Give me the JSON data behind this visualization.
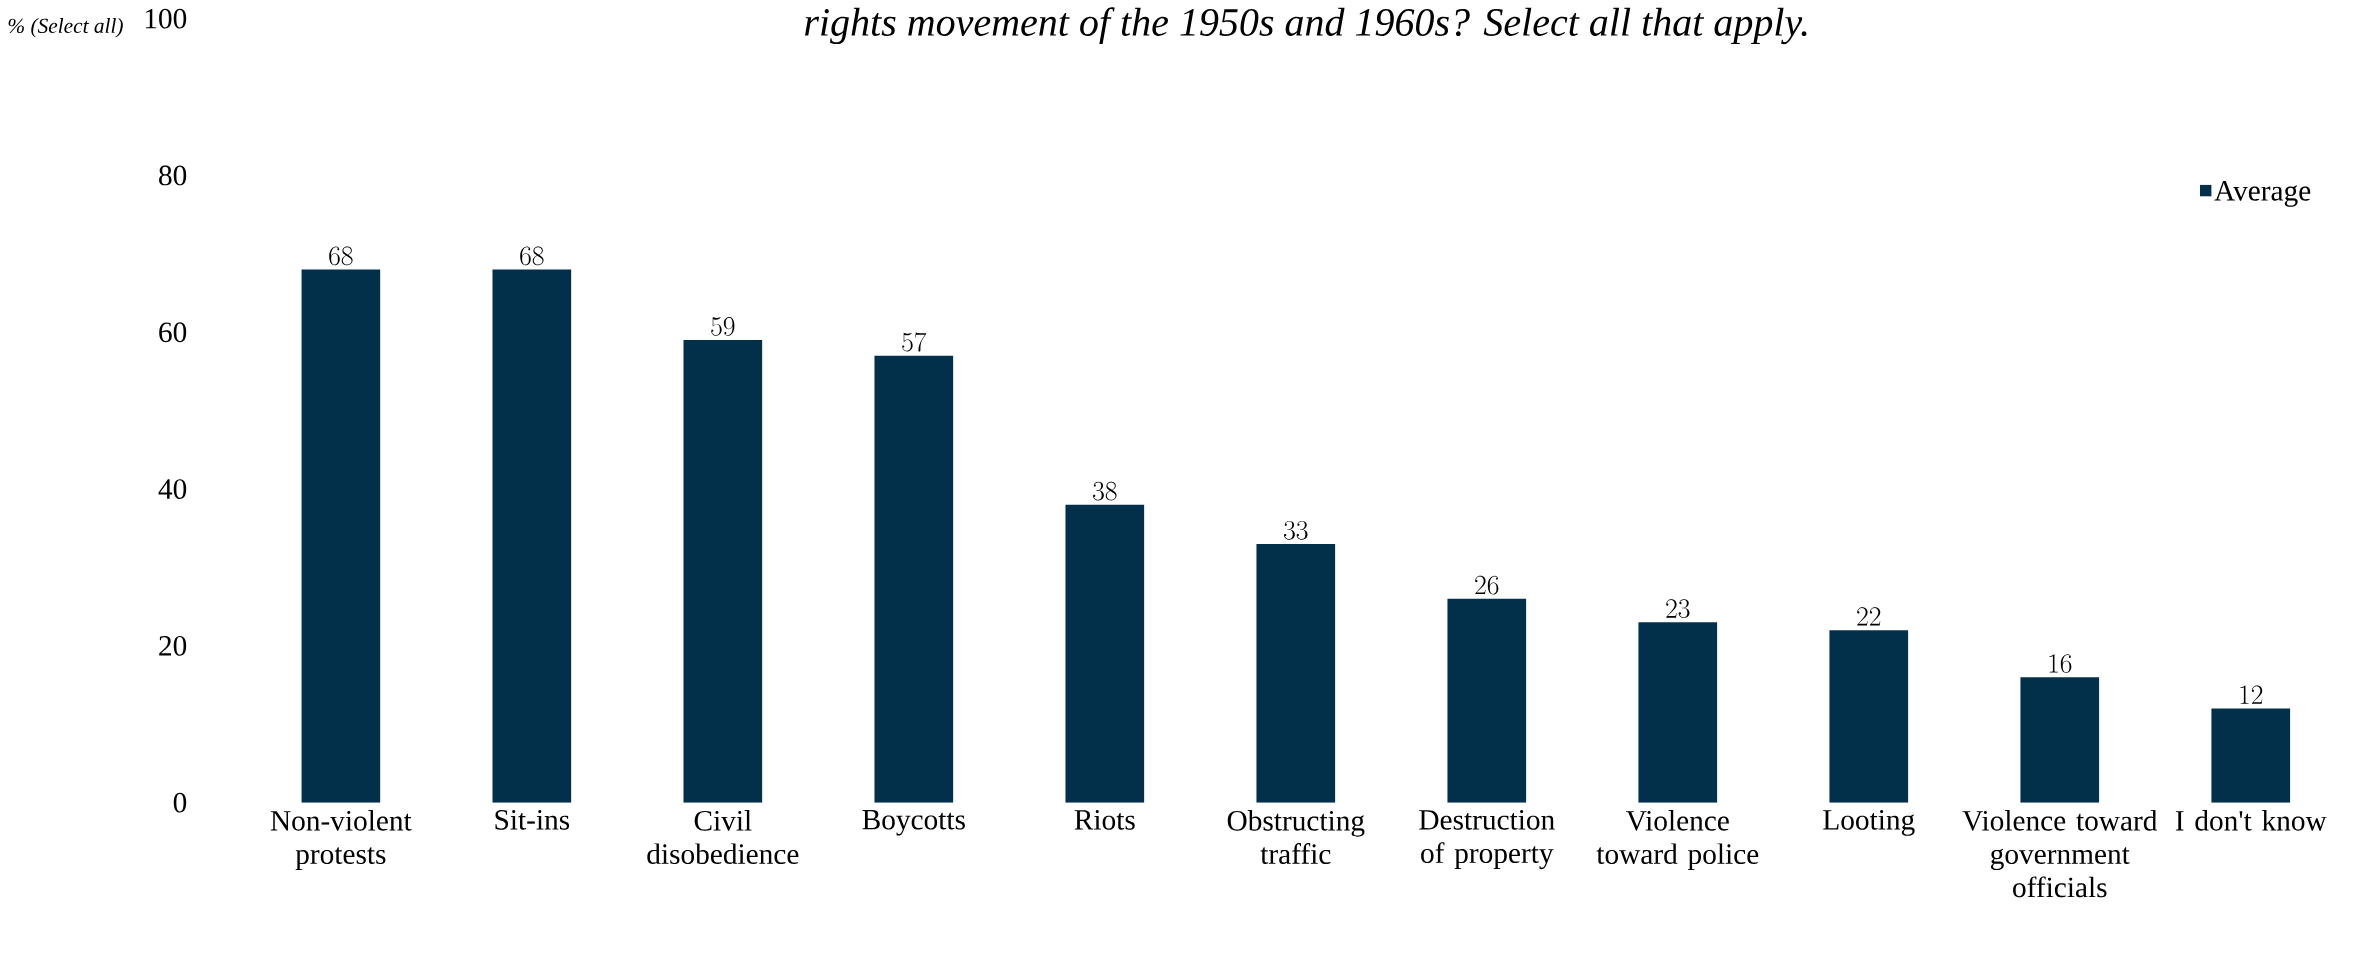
{
  "chart_data": {
    "type": "bar",
    "title": "rights movement of the 1950s and 1960s? Select all that apply.",
    "ylabel": "% (Select all)",
    "categories": [
      "Non-violent protests",
      "Sit-ins",
      "Civil disobedience",
      "Boycotts",
      "Riots",
      "Obstructing traffic",
      "Destruction of property",
      "Violence toward police",
      "Looting",
      "Violence toward government officials",
      "I don't know"
    ],
    "series": [
      {
        "name": "Average",
        "color": "#02304a",
        "values": [
          68,
          68,
          59,
          57,
          38,
          33,
          26,
          23,
          22,
          16,
          12
        ]
      }
    ],
    "ylim": [
      0,
      100
    ],
    "yticks": [
      0,
      20,
      40,
      60,
      80,
      100
    ],
    "data_labels": true,
    "legend": "top right",
    "grid": false
  }
}
